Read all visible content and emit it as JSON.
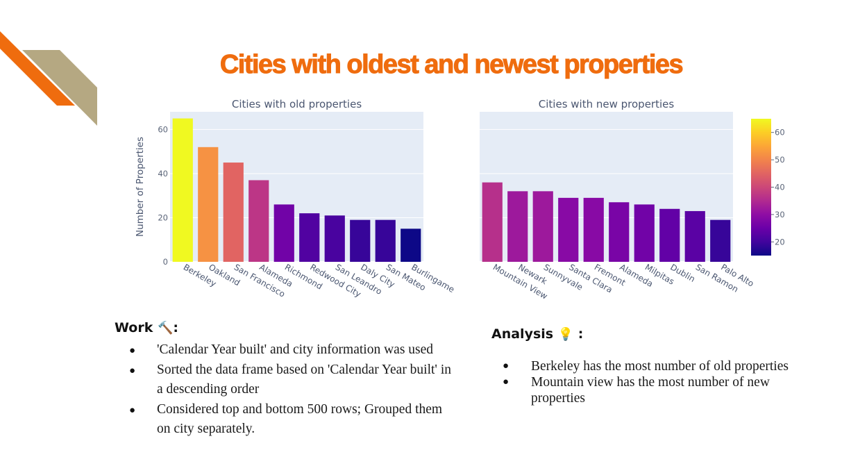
{
  "slide": {
    "title": "Cities with oldest and newest properties",
    "work_heading": "Work",
    "work_icon": "hammer-icon",
    "analysis_heading": "Analysis",
    "analysis_icon": "lightbulb-icon",
    "colon": ":",
    "work_items": [
      "'Calendar Year built' and city information was used",
      "Sorted the data frame based on 'Calendar Year built' in a descending order",
      "Considered top and bottom 500 rows; Grouped them on city separately."
    ],
    "analysis_items": [
      "Berkeley has the most number of old properties",
      "Mountain view has the most number of new properties"
    ],
    "accent_colors": [
      "#ef6c0e",
      "#b5a882"
    ]
  },
  "chart_data": [
    {
      "type": "bar",
      "title": "Cities with old properties",
      "ylabel": "Number of Properties",
      "categories": [
        "Berkeley",
        "Oakland",
        "San Francisco",
        "Alameda",
        "Richmond",
        "Redwood City",
        "San Leandro",
        "Daly City",
        "San Mateo",
        "Burlingame"
      ],
      "values": [
        65,
        52,
        45,
        37,
        26,
        22,
        21,
        19,
        19,
        15
      ],
      "ylim": [
        0,
        68
      ],
      "yticks": [
        0,
        20,
        40,
        60
      ],
      "grid": true
    },
    {
      "type": "bar",
      "title": "Cities with new properties",
      "categories": [
        "Mountain View",
        "Newark",
        "Sunnyvale",
        "Santa Clara",
        "Fremont",
        "Alameda",
        "Milpitas",
        "Dublin",
        "San Ramon",
        "Palo Alto"
      ],
      "values": [
        36,
        32,
        32,
        29,
        29,
        27,
        26,
        24,
        23,
        19
      ],
      "ylim": [
        0,
        68
      ],
      "grid": true
    }
  ],
  "colorbar": {
    "colorscale": "plasma",
    "range": [
      15,
      65
    ],
    "ticks": [
      20,
      30,
      40,
      50,
      60
    ]
  }
}
